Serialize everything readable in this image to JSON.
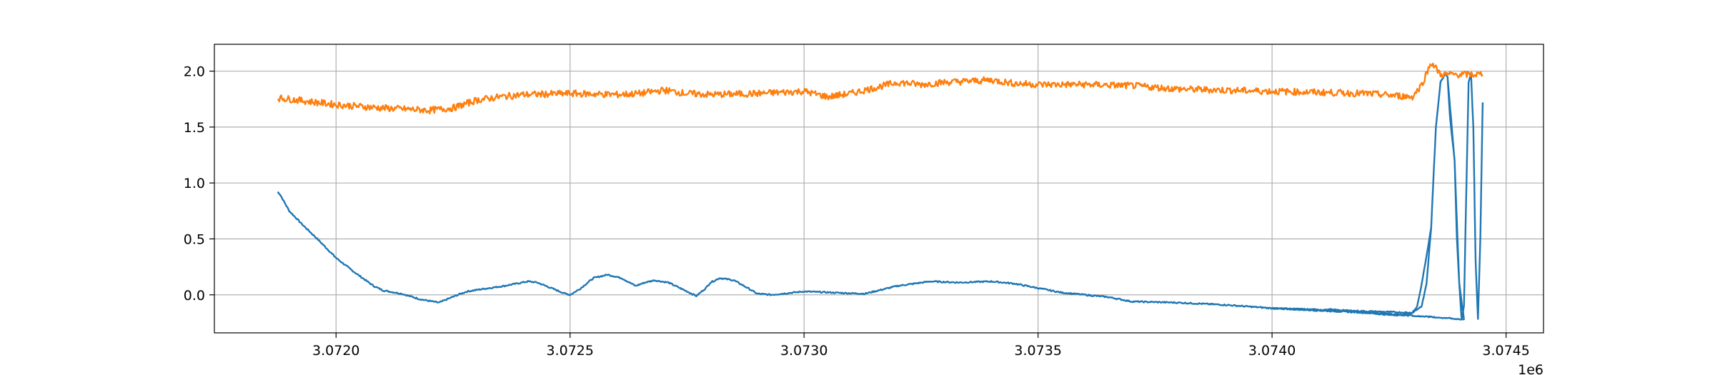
{
  "chart_data": {
    "type": "line",
    "title": "",
    "xlabel": "",
    "ylabel": "",
    "x_offset_label": "1e6",
    "xlim": [
      3.07174,
      3.07458
    ],
    "ylim": [
      -0.34,
      2.24
    ],
    "x_ticks": [
      3.072,
      3.0725,
      3.073,
      3.0735,
      3.074,
      3.0745
    ],
    "x_tick_labels": [
      "3.0720",
      "3.0725",
      "3.0730",
      "3.0735",
      "3.0740",
      "3.0745"
    ],
    "y_ticks": [
      0.0,
      0.5,
      1.0,
      1.5,
      2.0
    ],
    "y_tick_labels": [
      "0.0",
      "0.5",
      "1.0",
      "1.5",
      "2.0"
    ],
    "grid": true,
    "legend": "none",
    "series": [
      {
        "color": "#1f77b4",
        "noise": 0.006,
        "x": [
          3.071875,
          3.07188,
          3.0719,
          3.07193,
          3.07196,
          3.072,
          3.07204,
          3.07208,
          3.0721,
          3.07214,
          3.07218,
          3.07222,
          3.07226,
          3.07228,
          3.07231,
          3.07236,
          3.07241,
          3.07243,
          3.07246,
          3.07249,
          3.0725,
          3.07252,
          3.07255,
          3.07258,
          3.07261,
          3.07264,
          3.07266,
          3.07268,
          3.07271,
          3.07274,
          3.07277,
          3.07279,
          3.0728,
          3.07282,
          3.07285,
          3.07288,
          3.0729,
          3.07293,
          3.073,
          3.07306,
          3.07313,
          3.0732,
          3.07327,
          3.07333,
          3.0734,
          3.07345,
          3.07355,
          3.0736,
          3.07365,
          3.0737,
          3.0738,
          3.0739,
          3.074,
          3.0741,
          3.0742,
          3.07425,
          3.07428,
          3.0743,
          3.07431,
          3.07432,
          3.07434,
          3.07435,
          3.07436,
          3.07437,
          3.074375,
          3.07439,
          3.0744,
          3.07441,
          3.07412,
          3.07413,
          3.074,
          3.0743,
          3.07432,
          3.07433,
          3.07434,
          3.07435,
          3.07436,
          3.07437,
          3.074375,
          3.07438,
          3.07439,
          3.074395,
          3.0744,
          3.074405,
          3.07441,
          3.074415,
          3.07442,
          3.074425,
          3.07443,
          3.074435,
          3.07444,
          3.074445,
          3.07445
        ],
        "y": [
          0.92,
          0.9,
          0.75,
          0.62,
          0.5,
          0.33,
          0.2,
          0.08,
          0.04,
          0.01,
          -0.04,
          -0.07,
          0.0,
          0.03,
          0.05,
          0.08,
          0.12,
          0.11,
          0.06,
          0.01,
          0.0,
          0.05,
          0.15,
          0.18,
          0.15,
          0.08,
          0.11,
          0.13,
          0.11,
          0.05,
          -0.01,
          0.06,
          0.11,
          0.15,
          0.13,
          0.06,
          0.01,
          0.0,
          0.03,
          0.02,
          0.01,
          0.08,
          0.12,
          0.11,
          0.12,
          0.1,
          0.02,
          0.0,
          -0.02,
          -0.06,
          -0.07,
          -0.09,
          -0.12,
          -0.14,
          -0.16,
          -0.18,
          -0.18,
          -0.16,
          -0.1,
          0.1,
          0.6,
          1.5,
          1.9,
          1.98,
          1.95,
          1.2,
          0.1,
          -0.22,
          -0.13,
          -0.14,
          -0.12,
          -0.16,
          -0.1,
          0.1,
          0.6,
          1.5,
          1.9,
          1.98,
          1.95,
          1.6,
          1.2,
          0.5,
          0.1,
          -0.22,
          -0.1,
          0.9,
          1.9,
          1.98,
          1.5,
          0.3,
          -0.22,
          0.5,
          1.72
        ]
      },
      {
        "color": "#ff7f0e",
        "noise": 0.03,
        "x": [
          3.071875,
          3.0719,
          3.072,
          3.0721,
          3.0722,
          3.07225,
          3.0723,
          3.07235,
          3.0724,
          3.0725,
          3.0726,
          3.07265,
          3.0727,
          3.07275,
          3.0728,
          3.0729,
          3.073,
          3.07305,
          3.0731,
          3.07315,
          3.0732,
          3.07325,
          3.0733,
          3.07335,
          3.0734,
          3.07345,
          3.0735,
          3.0736,
          3.0737,
          3.0738,
          3.0739,
          3.074,
          3.0741,
          3.0742,
          3.0743,
          3.07432,
          3.07434,
          3.07436,
          3.0744,
          3.07445
        ],
        "y": [
          1.76,
          1.75,
          1.7,
          1.67,
          1.65,
          1.67,
          1.74,
          1.77,
          1.79,
          1.8,
          1.79,
          1.8,
          1.83,
          1.8,
          1.79,
          1.8,
          1.82,
          1.77,
          1.8,
          1.85,
          1.9,
          1.88,
          1.9,
          1.91,
          1.92,
          1.89,
          1.88,
          1.88,
          1.87,
          1.84,
          1.83,
          1.82,
          1.81,
          1.8,
          1.77,
          1.88,
          2.08,
          1.97,
          1.97,
          1.97
        ]
      }
    ]
  }
}
